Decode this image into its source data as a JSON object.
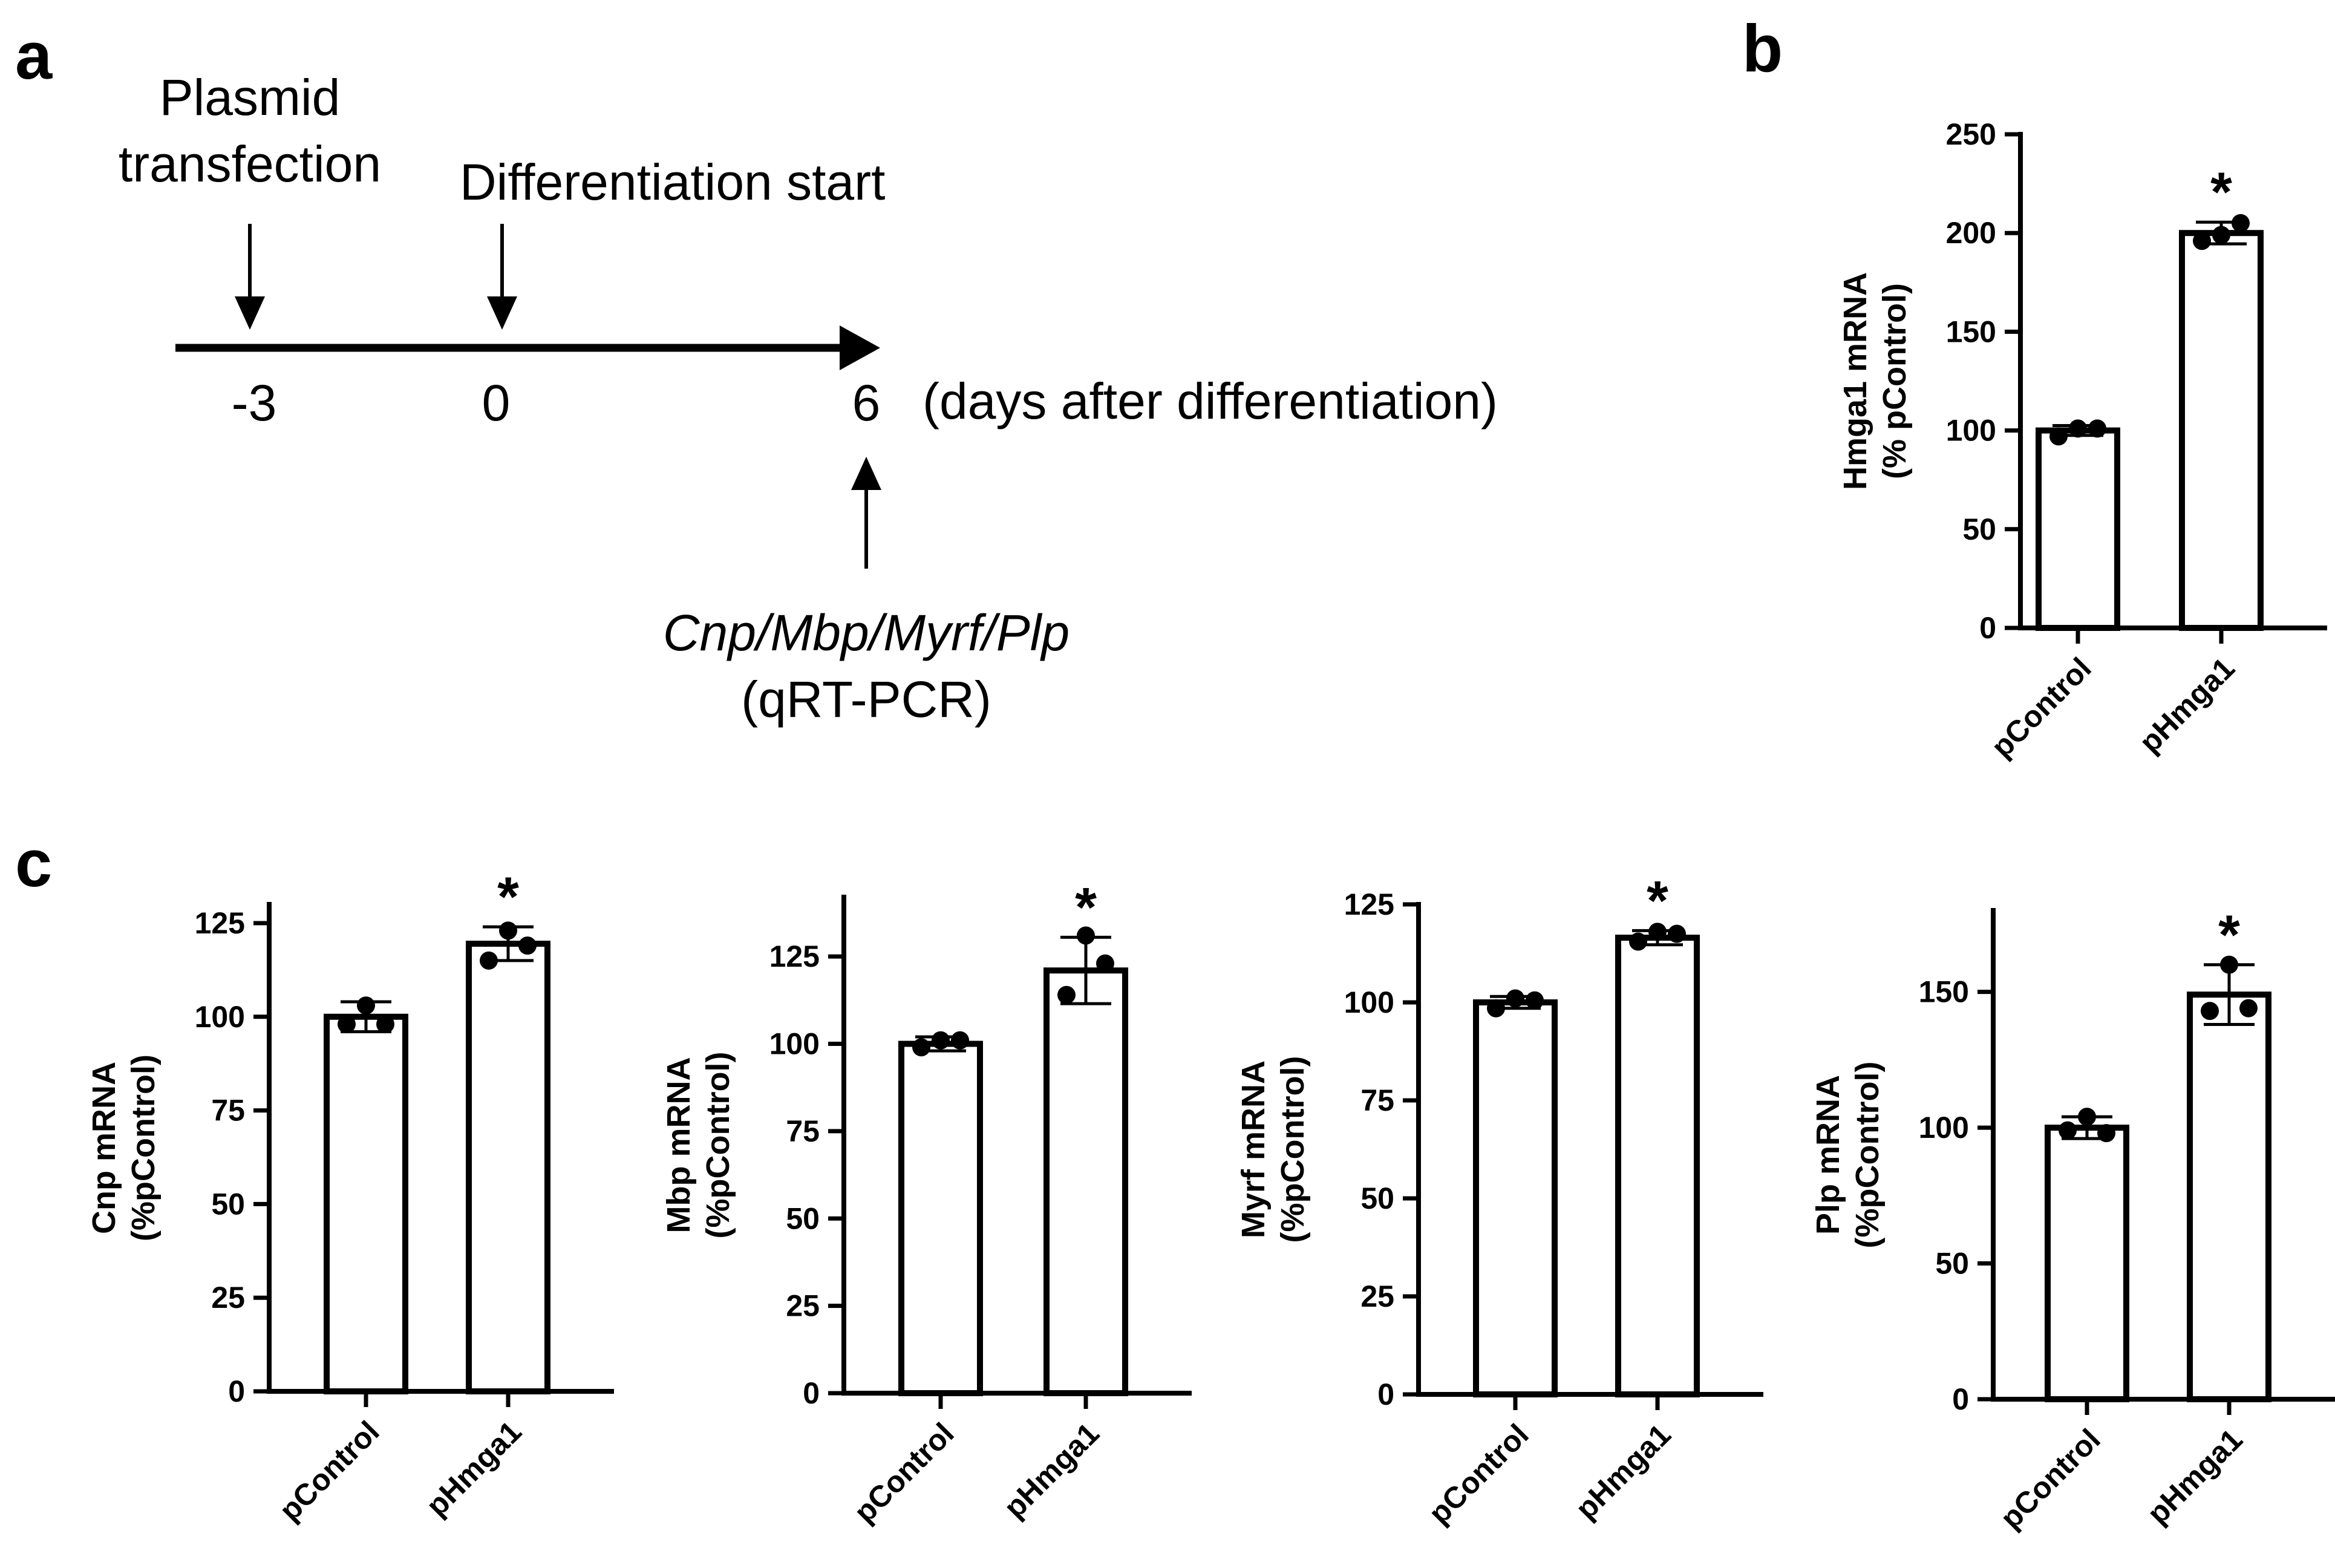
{
  "panels": {
    "a": "a",
    "b": "b",
    "c": "c"
  },
  "timeline": {
    "event1_line1": "Plasmid",
    "event1_line2": "transfection",
    "event2": "Differentiation start",
    "ticks": [
      "-3",
      "0",
      "6"
    ],
    "unit_label": "(days after differentiation)",
    "readout_line1": "Cnp/Mbp/Myrf/Plp",
    "readout_line2": "(qRT-PCR)"
  },
  "chart_data": [
    {
      "type": "bar",
      "panel": "b",
      "categories": [
        "pControl",
        "pHmga1"
      ],
      "values": [
        100,
        200
      ],
      "points": [
        [
          97,
          101,
          101
        ],
        [
          196,
          199,
          205
        ]
      ],
      "errors": [
        2.5,
        5.5
      ],
      "significance": [
        "",
        "*"
      ],
      "ylabel_line1": "Hmga1 mRNA",
      "ylabel_line2": "(% pControl)",
      "ylim": [
        0,
        250
      ],
      "yticks": [
        0,
        50,
        100,
        150,
        200,
        250
      ]
    },
    {
      "type": "bar",
      "panel": "c",
      "categories": [
        "pControl",
        "pHmga1"
      ],
      "values": [
        100,
        119.5
      ],
      "points": [
        [
          98,
          103,
          98
        ],
        [
          115,
          123,
          119
        ]
      ],
      "errors": [
        4,
        4.5
      ],
      "significance": [
        "",
        "*"
      ],
      "ylabel_line1": "Cnp mRNA",
      "ylabel_line2": "(%pControl)",
      "ylim": [
        0,
        130
      ],
      "yticks": [
        0,
        25,
        50,
        75,
        100,
        125
      ]
    },
    {
      "type": "bar",
      "panel": "c",
      "categories": [
        "pControl",
        "pHmga1"
      ],
      "values": [
        100,
        121
      ],
      "points": [
        [
          99,
          101,
          101
        ],
        [
          114,
          131,
          123
        ]
      ],
      "errors": [
        2,
        9.5
      ],
      "significance": [
        "",
        "*"
      ],
      "ylabel_line1": "Mbp mRNA",
      "ylabel_line2": "(%pControl)",
      "ylim": [
        0,
        142
      ],
      "yticks": [
        0,
        25,
        50,
        75,
        100,
        125
      ]
    },
    {
      "type": "bar",
      "panel": "c",
      "categories": [
        "pControl",
        "pHmga1"
      ],
      "values": [
        100,
        116.5
      ],
      "points": [
        [
          98.5,
          101,
          100.5
        ],
        [
          115.5,
          118,
          117.5
        ]
      ],
      "errors": [
        1.5,
        1.8
      ],
      "significance": [
        "",
        "*"
      ],
      "ylabel_line1": "Myrf mRNA",
      "ylabel_line2": "(%pControl)",
      "ylim": [
        0,
        125
      ],
      "yticks": [
        0,
        25,
        50,
        75,
        100,
        125
      ]
    },
    {
      "type": "bar",
      "panel": "c",
      "categories": [
        "pControl",
        "pHmga1"
      ],
      "values": [
        100,
        149
      ],
      "points": [
        [
          99,
          104,
          98
        ],
        [
          143,
          160,
          144
        ]
      ],
      "errors": [
        4,
        11
      ],
      "significance": [
        "",
        "*"
      ],
      "ylabel_line1": "Plp mRNA",
      "ylabel_line2": "(%pControl)",
      "ylim": [
        0,
        180
      ],
      "yticks": [
        0,
        50,
        100,
        150
      ]
    }
  ]
}
